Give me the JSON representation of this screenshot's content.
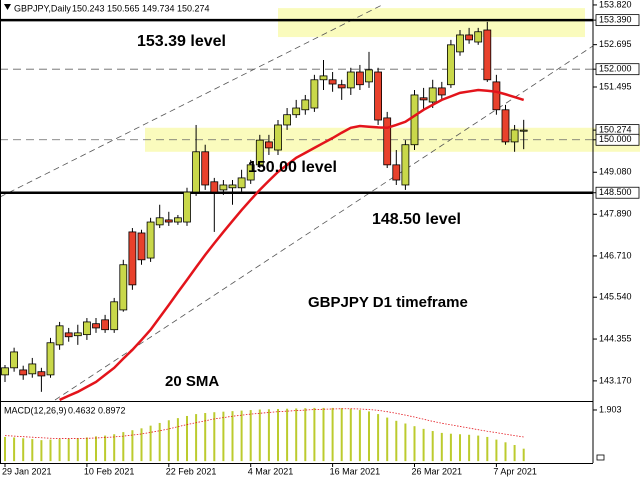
{
  "chart_data": [
    {
      "type": "candlestick",
      "title": "GBPJPY,Daily",
      "categories": [
        "29 Jan 2021",
        null,
        null,
        null,
        null,
        null,
        null,
        null,
        null,
        "10 Feb 2021",
        null,
        null,
        null,
        null,
        null,
        null,
        null,
        null,
        "22 Feb 2021",
        null,
        null,
        null,
        null,
        null,
        null,
        null,
        null,
        "4 Mar 2021",
        null,
        null,
        null,
        null,
        null,
        null,
        null,
        null,
        "16 Mar 2021",
        null,
        null,
        null,
        null,
        null,
        null,
        null,
        null,
        "26 Mar 2021",
        null,
        null,
        null,
        null,
        null,
        null,
        null,
        null,
        "7 Apr 2021",
        null,
        null,
        null
      ],
      "open": [
        143.34,
        143.54,
        143.48,
        143.37,
        143.43,
        143.34,
        144.19,
        144.53,
        144.45,
        144.48,
        144.79,
        144.9,
        144.62,
        145.18,
        147.39,
        147.36,
        146.65,
        147.59,
        147.73,
        147.67,
        147.67,
        148.52,
        149.66,
        148.81,
        148.58,
        148.64,
        148.64,
        148.86,
        149.29,
        149.94,
        149.71,
        150.42,
        150.71,
        150.85,
        150.9,
        151.7,
        151.7,
        151.56,
        151.47,
        151.92,
        151.64,
        151.92,
        150.62,
        149.29,
        148.72,
        149.86,
        151.19,
        151.07,
        151.47,
        151.56,
        152.49,
        152.97,
        152.77,
        153.11,
        151.64,
        150.85,
        149.94,
        150.243
      ],
      "high": [
        143.62,
        144.11,
        143.6,
        143.82,
        143.54,
        144.39,
        144.84,
        144.67,
        144.76,
        144.95,
        144.95,
        145.04,
        145.52,
        146.6,
        147.5,
        147.45,
        147.79,
        148.16,
        147.96,
        147.87,
        148.64,
        150.42,
        149.86,
        148.92,
        148.86,
        148.86,
        149.15,
        149.43,
        150.14,
        150.14,
        150.56,
        150.9,
        151.13,
        151.27,
        151.84,
        152.26,
        151.92,
        151.7,
        152.04,
        152.12,
        152.49,
        152.04,
        150.79,
        149.71,
        149.99,
        151.41,
        151.47,
        151.7,
        151.64,
        152.83,
        153.11,
        153.17,
        153.17,
        153.34,
        151.84,
        150.99,
        150.42,
        150.565
      ],
      "low": [
        143.14,
        143.43,
        143.2,
        143.26,
        142.86,
        143.26,
        144.05,
        144.28,
        144.19,
        144.33,
        144.53,
        144.53,
        144.53,
        145.13,
        145.75,
        146.46,
        146.54,
        147.5,
        147.56,
        147.59,
        147.56,
        148.41,
        148.58,
        147.39,
        148.44,
        148.16,
        148.52,
        148.75,
        149.2,
        149.57,
        149.57,
        150.28,
        150.62,
        150.71,
        150.79,
        151.41,
        151.36,
        151.13,
        151.27,
        151.41,
        151.47,
        150.42,
        149.2,
        148.72,
        148.58,
        149.71,
        150.85,
        150.9,
        151.13,
        151.47,
        152.38,
        152.72,
        152.69,
        151.64,
        150.71,
        149.86,
        149.66,
        149.734
      ],
      "close": [
        143.54,
        143.99,
        143.34,
        143.65,
        143.31,
        144.25,
        144.73,
        144.42,
        144.53,
        144.84,
        144.67,
        144.62,
        145.41,
        146.46,
        145.89,
        146.6,
        147.67,
        147.79,
        147.67,
        147.79,
        148.52,
        149.66,
        148.72,
        148.52,
        148.72,
        148.72,
        148.92,
        149.29,
        149.99,
        149.77,
        150.42,
        150.71,
        150.9,
        151.13,
        151.7,
        151.81,
        151.58,
        151.47,
        151.92,
        151.56,
        151.98,
        150.56,
        149.29,
        148.86,
        149.86,
        151.27,
        151.13,
        151.47,
        151.27,
        152.69,
        152.97,
        152.83,
        153.06,
        151.7,
        150.85,
        149.94,
        150.28,
        150.274
      ],
      "up_color": "#c9d84a",
      "down_color": "#e8412c",
      "overlay": {
        "color": "#e3141b",
        "values": [
          null,
          null,
          null,
          null,
          null,
          null,
          142.63,
          142.75,
          142.86,
          143.0,
          143.14,
          143.34,
          143.54,
          143.8,
          144.05,
          144.33,
          144.62,
          144.97,
          145.32,
          145.68,
          146.03,
          146.39,
          146.74,
          147.07,
          147.39,
          147.7,
          148.01,
          148.3,
          148.58,
          148.84,
          149.09,
          149.29,
          149.49,
          149.63,
          149.77,
          149.91,
          150.05,
          150.2,
          150.34,
          150.39,
          150.37,
          150.35,
          150.34,
          150.42,
          150.51,
          150.68,
          150.85,
          150.99,
          151.13,
          151.23,
          151.33,
          151.37,
          151.41,
          151.39,
          151.36,
          151.29,
          151.21,
          151.13
        ]
      },
      "ylim": [
        142.6,
        153.96
      ],
      "yticks": [
        {
          "value": 153.82,
          "label": "153.820"
        },
        {
          "value": 153.39,
          "label": "153.390",
          "boxed": true
        },
        152.695,
        {
          "value": 152,
          "label": "152.000",
          "boxed": true
        },
        151.495,
        {
          "value": 150.274,
          "label": "150.274",
          "boxed": true
        },
        {
          "value": 150,
          "label": "150.000",
          "boxed": true
        },
        {
          "value": 149.08,
          "label": "149.080"
        },
        {
          "value": 148.5,
          "label": "148.500",
          "boxed": true
        },
        {
          "value": 147.89,
          "label": "147.890"
        },
        {
          "value": 146.71,
          "label": "146.710"
        },
        {
          "value": 145.54,
          "label": "145.540"
        },
        144.355,
        {
          "value": 143.17,
          "label": "143.170"
        }
      ],
      "hlines": [
        {
          "value": 153.39,
          "style": "solid"
        },
        {
          "value": 152,
          "style": "dashed"
        },
        {
          "value": 150,
          "style": "dashed"
        },
        {
          "value": 148.5,
          "style": "solid"
        }
      ],
      "zones": [
        {
          "from": 152.91,
          "to": 153.73
        },
        {
          "from": 149.66,
          "to": 150.34
        }
      ],
      "zone_color": "#fafbbd",
      "annotations": [
        "153.39 level",
        "150.00 level",
        "148.50 level",
        "GBPJPY D1 timeframe",
        "20 SMA"
      ]
    },
    {
      "type": "bar",
      "title": "MACD(12,26,9)",
      "values": [
        0.9,
        0.88,
        0.85,
        0.82,
        0.78,
        0.8,
        0.82,
        0.83,
        0.85,
        0.88,
        0.92,
        0.95,
        1.0,
        1.08,
        1.15,
        1.22,
        1.32,
        1.42,
        1.52,
        1.6,
        1.68,
        1.75,
        1.79,
        1.82,
        1.84,
        1.86,
        1.88,
        1.9,
        1.92,
        1.93,
        1.94,
        1.95,
        1.96,
        1.97,
        1.98,
        1.98,
        1.98,
        1.97,
        1.95,
        1.9,
        1.85,
        1.75,
        1.62,
        1.5,
        1.4,
        1.3,
        1.2,
        1.12,
        1.05,
        1.02,
        1.0,
        0.98,
        0.95,
        0.9,
        0.8,
        0.7,
        0.6,
        0.4632
      ],
      "color": "#bccb2e",
      "signal": {
        "color": "#e3141b",
        "values": [
          0.95,
          0.93,
          0.91,
          0.89,
          0.87,
          0.85,
          0.84,
          0.84,
          0.84,
          0.85,
          0.86,
          0.88,
          0.9,
          0.93,
          0.97,
          1.01,
          1.07,
          1.13,
          1.2,
          1.28,
          1.36,
          1.43,
          1.5,
          1.57,
          1.62,
          1.67,
          1.71,
          1.75,
          1.78,
          1.81,
          1.84,
          1.86,
          1.88,
          1.9,
          1.92,
          1.93,
          1.94,
          1.95,
          1.95,
          1.94,
          1.92,
          1.89,
          1.84,
          1.78,
          1.71,
          1.64,
          1.56,
          1.48,
          1.41,
          1.35,
          1.29,
          1.23,
          1.17,
          1.11,
          1.06,
          1.0,
          0.95,
          0.8972
        ]
      },
      "ylim": [
        -0.07,
        2.2
      ],
      "yticks": [
        1.903
      ]
    }
  ]
}
